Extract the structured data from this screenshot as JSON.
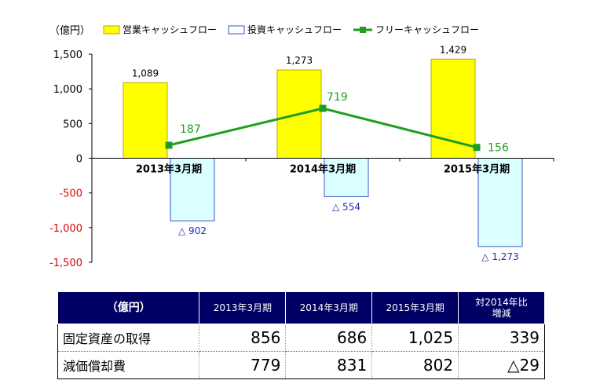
{
  "chart_data": {
    "type": "bar",
    "unit_label": "（億円）",
    "categories": [
      "2013年3月期",
      "2014年3月期",
      "2015年3月期"
    ],
    "ylim": [
      -1500,
      1500
    ],
    "yticks": [
      "1,500",
      "1,000",
      "500",
      "0",
      "-500",
      "-1,000",
      "-1,500"
    ],
    "ytick_values": [
      1500,
      1000,
      500,
      0,
      -500,
      -1000,
      -1500
    ],
    "legend_position": "top",
    "series": [
      {
        "name": "営業キャッシュフロー",
        "kind": "bar",
        "values": [
          1089,
          1273,
          1429
        ],
        "labels": [
          "1,089",
          "1,273",
          "1,429"
        ],
        "color": "#ffff00",
        "stroke": "#b5a800"
      },
      {
        "name": "投資キャッシュフロー",
        "kind": "bar",
        "values": [
          -902,
          -554,
          -1273
        ],
        "labels": [
          "△ 902",
          "△ 554",
          "△ 1,273"
        ],
        "color": "#d9ffff",
        "stroke": "#3a55c8"
      },
      {
        "name": "フリーキャッシュフロー",
        "kind": "line",
        "values": [
          187,
          719,
          156
        ],
        "labels": [
          "187",
          "719",
          "156"
        ],
        "color": "#1e9e1e"
      }
    ]
  },
  "table": {
    "headers": [
      "（億円）",
      "2013年3月期",
      "2014年3月期",
      "2015年3月期",
      "対2014年比\n増減"
    ],
    "rows": [
      {
        "label": "固定資産の取得",
        "values": [
          "856",
          "686",
          "1,025",
          "339"
        ]
      },
      {
        "label": "減価償却費",
        "values": [
          "779",
          "831",
          "802",
          "△29"
        ]
      }
    ]
  }
}
